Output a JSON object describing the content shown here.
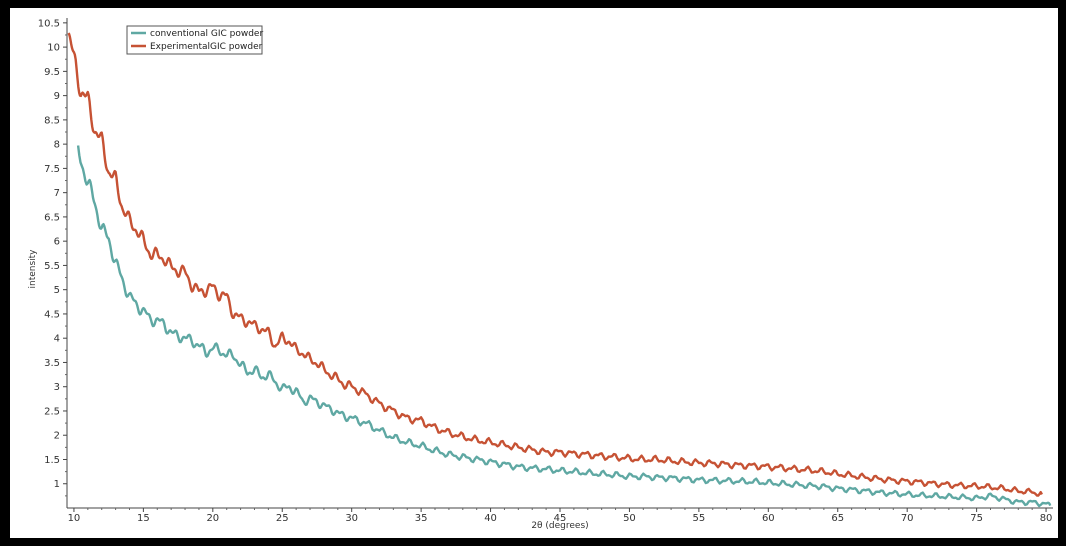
{
  "chart_data": {
    "type": "line",
    "xlabel": "2θ (degrees)",
    "ylabel": "intensity",
    "xlim": [
      9.5,
      80.5
    ],
    "ylim": [
      0.5,
      10.6
    ],
    "xticks": [
      10,
      15,
      20,
      25,
      30,
      35,
      40,
      45,
      50,
      55,
      60,
      65,
      70,
      75,
      80
    ],
    "yticks": [
      1,
      1.5,
      2,
      2.5,
      3,
      3.5,
      4,
      4.5,
      5,
      5.5,
      6,
      6.5,
      7,
      7.5,
      8,
      8.5,
      9,
      9.5,
      10,
      10.5
    ],
    "grid": false,
    "legend_position": "top-left",
    "colors": {
      "conventional": "#5fa8a3",
      "experimental": "#c65234"
    },
    "series": [
      {
        "name": "conventional GIC powder",
        "color": "#5fa8a3",
        "x": [
          10.3,
          11,
          11.5,
          12,
          12.5,
          13,
          13.5,
          14,
          14.5,
          15,
          15.5,
          16,
          16.5,
          17,
          17.5,
          18,
          18.5,
          19,
          19.5,
          20,
          20.5,
          21,
          21.5,
          22,
          22.5,
          23,
          23.5,
          24,
          24.5,
          25,
          25.5,
          26,
          26.5,
          27,
          27.5,
          28,
          28.5,
          29,
          29.5,
          30,
          31,
          32,
          33,
          34,
          35,
          36,
          37,
          38,
          39,
          40,
          41,
          42,
          43,
          44,
          45,
          46,
          47,
          48,
          49,
          50,
          51,
          52,
          53,
          54,
          55,
          56,
          57,
          58,
          59,
          60,
          61,
          62,
          63,
          64,
          65,
          66,
          67,
          68,
          69,
          70,
          71,
          72,
          73,
          74,
          75,
          76,
          77,
          78,
          79,
          80,
          80.3
        ],
        "y": [
          7.85,
          7.2,
          6.8,
          6.25,
          6.05,
          5.55,
          5.2,
          4.85,
          4.7,
          4.55,
          4.4,
          4.35,
          4.3,
          4.1,
          4.05,
          4.0,
          3.95,
          3.85,
          3.7,
          3.8,
          3.75,
          3.65,
          3.65,
          3.45,
          3.3,
          3.35,
          3.2,
          3.25,
          3.1,
          2.95,
          3.0,
          2.9,
          2.7,
          2.75,
          2.7,
          2.6,
          2.55,
          2.45,
          2.4,
          2.35,
          2.25,
          2.1,
          1.95,
          1.85,
          1.78,
          1.68,
          1.6,
          1.55,
          1.5,
          1.45,
          1.4,
          1.35,
          1.32,
          1.3,
          1.27,
          1.25,
          1.22,
          1.2,
          1.18,
          1.15,
          1.15,
          1.13,
          1.12,
          1.1,
          1.08,
          1.07,
          1.06,
          1.05,
          1.04,
          1.02,
          1.0,
          0.98,
          0.96,
          0.94,
          0.9,
          0.88,
          0.85,
          0.82,
          0.8,
          0.78,
          0.76,
          0.75,
          0.73,
          0.72,
          0.7,
          0.75,
          0.68,
          0.62,
          0.62,
          0.58,
          0.55
        ]
      },
      {
        "name": "ExperimentalGIC powder",
        "color": "#c65234",
        "x": [
          9.6,
          10,
          10.5,
          11,
          11.5,
          12,
          12.5,
          13,
          13.5,
          14,
          14.5,
          15,
          15.5,
          16,
          16.5,
          17,
          17.5,
          18,
          18.5,
          19,
          19.5,
          20,
          20.5,
          21,
          21.5,
          22,
          22.5,
          23,
          23.5,
          24,
          24.5,
          25,
          25.5,
          26,
          26.5,
          27,
          27.5,
          28,
          28.5,
          29,
          29.5,
          30,
          31,
          32,
          33,
          34,
          35,
          36,
          37,
          38,
          39,
          40,
          41,
          42,
          43,
          44,
          45,
          46,
          47,
          48,
          49,
          50,
          51,
          52,
          53,
          54,
          55,
          56,
          57,
          58,
          59,
          60,
          61,
          62,
          63,
          64,
          65,
          66,
          67,
          68,
          69,
          70,
          71,
          72,
          73,
          74,
          75,
          76,
          77,
          78,
          79,
          79.7
        ],
        "y": [
          10.3,
          9.75,
          9.1,
          8.9,
          8.3,
          8.05,
          7.45,
          7.25,
          6.7,
          6.4,
          6.25,
          6.0,
          5.75,
          5.7,
          5.65,
          5.45,
          5.4,
          5.35,
          5.1,
          4.95,
          5.0,
          5.05,
          4.9,
          4.85,
          4.5,
          4.4,
          4.35,
          4.25,
          4.2,
          4.1,
          3.85,
          4.0,
          3.95,
          3.75,
          3.7,
          3.55,
          3.5,
          3.35,
          3.25,
          3.15,
          3.05,
          3.0,
          2.85,
          2.65,
          2.5,
          2.35,
          2.3,
          2.15,
          2.05,
          1.97,
          1.9,
          1.85,
          1.8,
          1.75,
          1.7,
          1.65,
          1.65,
          1.62,
          1.6,
          1.57,
          1.55,
          1.52,
          1.5,
          1.5,
          1.47,
          1.45,
          1.43,
          1.42,
          1.4,
          1.38,
          1.37,
          1.35,
          1.33,
          1.3,
          1.28,
          1.25,
          1.2,
          1.17,
          1.13,
          1.1,
          1.07,
          1.05,
          1.03,
          1.0,
          0.98,
          0.96,
          0.95,
          0.93,
          0.9,
          0.85,
          0.83,
          0.78
        ]
      }
    ]
  }
}
